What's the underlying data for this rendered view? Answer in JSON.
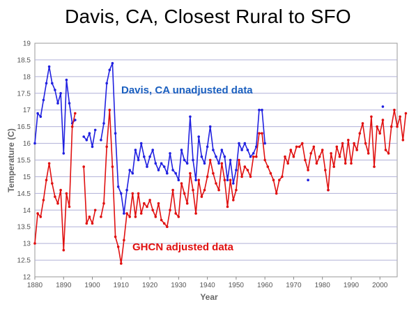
{
  "chart_data": {
    "type": "line",
    "title": "Davis, CA, Closest Rural to SFO",
    "xlabel": "Year",
    "ylabel": "Temperature (C)",
    "xlim": [
      1880,
      2006
    ],
    "ylim": [
      12,
      19
    ],
    "xticks": [
      1880,
      1890,
      1900,
      1910,
      1920,
      1930,
      1940,
      1950,
      1960,
      1970,
      1980,
      1990,
      2000
    ],
    "yticks": [
      12,
      12.5,
      13,
      13.5,
      14,
      14.5,
      15,
      15.5,
      16,
      16.5,
      17,
      17.5,
      18,
      18.5,
      19
    ],
    "grid": "horizontal",
    "annotations": [
      {
        "text": "Davis, CA unadjusted data",
        "color": "#1a5fbf"
      },
      {
        "text": "GHCN adjusted data",
        "color": "#e01010"
      }
    ],
    "series": [
      {
        "color": "#2020e0",
        "points": [
          [
            1880,
            16.0
          ],
          [
            1881,
            16.9
          ],
          [
            1882,
            16.8
          ],
          [
            1883,
            17.3
          ],
          [
            1884,
            17.8
          ],
          [
            1885,
            18.3
          ],
          [
            1886,
            17.8
          ],
          [
            1887,
            17.6
          ],
          [
            1888,
            17.2
          ],
          [
            1889,
            17.5
          ],
          [
            1890,
            15.7
          ],
          [
            1891,
            17.9
          ],
          [
            1892,
            17.2
          ],
          [
            1893,
            16.6
          ],
          [
            1894,
            16.7
          ],
          [
            1897,
            16.2
          ],
          [
            1898,
            16.1
          ],
          [
            1899,
            16.3
          ],
          [
            1900,
            15.9
          ],
          [
            1901,
            16.4
          ],
          [
            1903,
            16.1
          ],
          [
            1904,
            16.6
          ],
          [
            1905,
            17.8
          ],
          [
            1906,
            18.2
          ],
          [
            1907,
            18.4
          ],
          [
            1908,
            16.3
          ],
          [
            1909,
            14.7
          ],
          [
            1910,
            14.5
          ],
          [
            1911,
            13.9
          ],
          [
            1912,
            14.6
          ],
          [
            1913,
            15.2
          ],
          [
            1914,
            15.1
          ],
          [
            1915,
            15.8
          ],
          [
            1916,
            15.5
          ],
          [
            1917,
            16.0
          ],
          [
            1918,
            15.6
          ],
          [
            1919,
            15.3
          ],
          [
            1920,
            15.6
          ],
          [
            1921,
            15.8
          ],
          [
            1922,
            15.4
          ],
          [
            1923,
            15.2
          ],
          [
            1924,
            15.4
          ],
          [
            1925,
            15.3
          ],
          [
            1926,
            15.1
          ],
          [
            1927,
            15.7
          ],
          [
            1928,
            15.2
          ],
          [
            1929,
            15.1
          ],
          [
            1930,
            14.9
          ],
          [
            1931,
            15.8
          ],
          [
            1932,
            15.5
          ],
          [
            1933,
            15.4
          ],
          [
            1934,
            16.8
          ],
          [
            1935,
            15.5
          ],
          [
            1936,
            14.9
          ],
          [
            1937,
            16.2
          ],
          [
            1938,
            15.6
          ],
          [
            1939,
            15.4
          ],
          [
            1940,
            15.9
          ],
          [
            1941,
            16.5
          ],
          [
            1942,
            15.8
          ],
          [
            1943,
            15.6
          ],
          [
            1944,
            15.4
          ],
          [
            1945,
            15.8
          ],
          [
            1946,
            15.6
          ],
          [
            1947,
            14.9
          ],
          [
            1948,
            15.5
          ],
          [
            1949,
            14.8
          ],
          [
            1950,
            15.2
          ],
          [
            1951,
            16.0
          ],
          [
            1952,
            15.8
          ],
          [
            1953,
            16.0
          ],
          [
            1954,
            15.8
          ],
          [
            1955,
            15.6
          ],
          [
            1956,
            15.7
          ],
          [
            1957,
            15.9
          ],
          [
            1958,
            17.0
          ],
          [
            1959,
            17.0
          ],
          [
            1960,
            16.0
          ],
          [
            1975,
            14.9
          ],
          [
            1982,
            14.6
          ],
          [
            2001,
            17.1
          ]
        ]
      },
      {
        "color": "#e01010",
        "points": [
          [
            1880,
            13.0
          ],
          [
            1881,
            13.9
          ],
          [
            1882,
            13.8
          ],
          [
            1883,
            14.3
          ],
          [
            1884,
            14.9
          ],
          [
            1885,
            15.4
          ],
          [
            1886,
            14.8
          ],
          [
            1887,
            14.4
          ],
          [
            1888,
            14.2
          ],
          [
            1889,
            14.6
          ],
          [
            1890,
            12.8
          ],
          [
            1891,
            14.5
          ],
          [
            1892,
            14.1
          ],
          [
            1893,
            16.5
          ],
          [
            1894,
            16.9
          ],
          [
            1897,
            15.3
          ],
          [
            1898,
            13.6
          ],
          [
            1899,
            13.8
          ],
          [
            1900,
            13.6
          ],
          [
            1901,
            14.0
          ],
          [
            1903,
            13.8
          ],
          [
            1904,
            14.2
          ],
          [
            1905,
            15.9
          ],
          [
            1906,
            17.0
          ],
          [
            1907,
            15.3
          ],
          [
            1908,
            13.2
          ],
          [
            1909,
            12.9
          ],
          [
            1910,
            12.4
          ],
          [
            1911,
            13.1
          ],
          [
            1912,
            13.9
          ],
          [
            1913,
            13.8
          ],
          [
            1914,
            14.5
          ],
          [
            1915,
            13.8
          ],
          [
            1916,
            14.5
          ],
          [
            1917,
            13.9
          ],
          [
            1918,
            14.2
          ],
          [
            1919,
            14.1
          ],
          [
            1920,
            14.3
          ],
          [
            1921,
            14.0
          ],
          [
            1922,
            13.8
          ],
          [
            1923,
            14.2
          ],
          [
            1924,
            13.7
          ],
          [
            1925,
            13.6
          ],
          [
            1926,
            13.5
          ],
          [
            1927,
            14.0
          ],
          [
            1928,
            14.6
          ],
          [
            1929,
            13.9
          ],
          [
            1930,
            13.8
          ],
          [
            1931,
            14.8
          ],
          [
            1932,
            14.5
          ],
          [
            1933,
            14.2
          ],
          [
            1934,
            15.1
          ],
          [
            1935,
            14.6
          ],
          [
            1936,
            13.9
          ],
          [
            1937,
            14.9
          ],
          [
            1938,
            14.4
          ],
          [
            1939,
            14.6
          ],
          [
            1940,
            15.0
          ],
          [
            1941,
            15.5
          ],
          [
            1942,
            15.1
          ],
          [
            1943,
            14.8
          ],
          [
            1944,
            14.6
          ],
          [
            1945,
            15.4
          ],
          [
            1946,
            14.9
          ],
          [
            1947,
            14.1
          ],
          [
            1948,
            14.9
          ],
          [
            1949,
            14.3
          ],
          [
            1950,
            14.6
          ],
          [
            1951,
            15.5
          ],
          [
            1952,
            15.0
          ],
          [
            1953,
            15.3
          ],
          [
            1954,
            15.2
          ],
          [
            1955,
            15.0
          ],
          [
            1956,
            15.6
          ],
          [
            1957,
            15.6
          ],
          [
            1958,
            16.3
          ],
          [
            1959,
            16.3
          ],
          [
            1960,
            15.5
          ],
          [
            1961,
            15.3
          ],
          [
            1962,
            15.1
          ],
          [
            1963,
            14.9
          ],
          [
            1964,
            14.5
          ],
          [
            1965,
            14.9
          ],
          [
            1966,
            15.0
          ],
          [
            1967,
            15.6
          ],
          [
            1968,
            15.4
          ],
          [
            1969,
            15.8
          ],
          [
            1970,
            15.6
          ],
          [
            1971,
            15.9
          ],
          [
            1972,
            15.9
          ],
          [
            1973,
            16.0
          ],
          [
            1974,
            15.5
          ],
          [
            1975,
            15.2
          ],
          [
            1976,
            15.7
          ],
          [
            1977,
            15.9
          ],
          [
            1978,
            15.4
          ],
          [
            1979,
            15.6
          ],
          [
            1980,
            15.8
          ],
          [
            1981,
            15.2
          ],
          [
            1982,
            14.6
          ],
          [
            1983,
            15.7
          ],
          [
            1984,
            15.3
          ],
          [
            1985,
            15.9
          ],
          [
            1986,
            15.6
          ],
          [
            1987,
            16.0
          ],
          [
            1988,
            15.4
          ],
          [
            1989,
            16.1
          ],
          [
            1990,
            15.4
          ],
          [
            1991,
            16.0
          ],
          [
            1992,
            15.8
          ],
          [
            1993,
            16.3
          ],
          [
            1994,
            16.6
          ],
          [
            1995,
            16.0
          ],
          [
            1996,
            15.7
          ],
          [
            1997,
            16.8
          ],
          [
            1998,
            15.3
          ],
          [
            1999,
            16.5
          ],
          [
            2000,
            16.3
          ],
          [
            2001,
            16.7
          ],
          [
            2002,
            15.8
          ],
          [
            2003,
            15.7
          ],
          [
            2004,
            16.5
          ],
          [
            2005,
            17.0
          ],
          [
            2006,
            16.5
          ],
          [
            2007,
            16.8
          ],
          [
            2008,
            16.1
          ],
          [
            2009,
            16.9
          ]
        ]
      }
    ]
  }
}
